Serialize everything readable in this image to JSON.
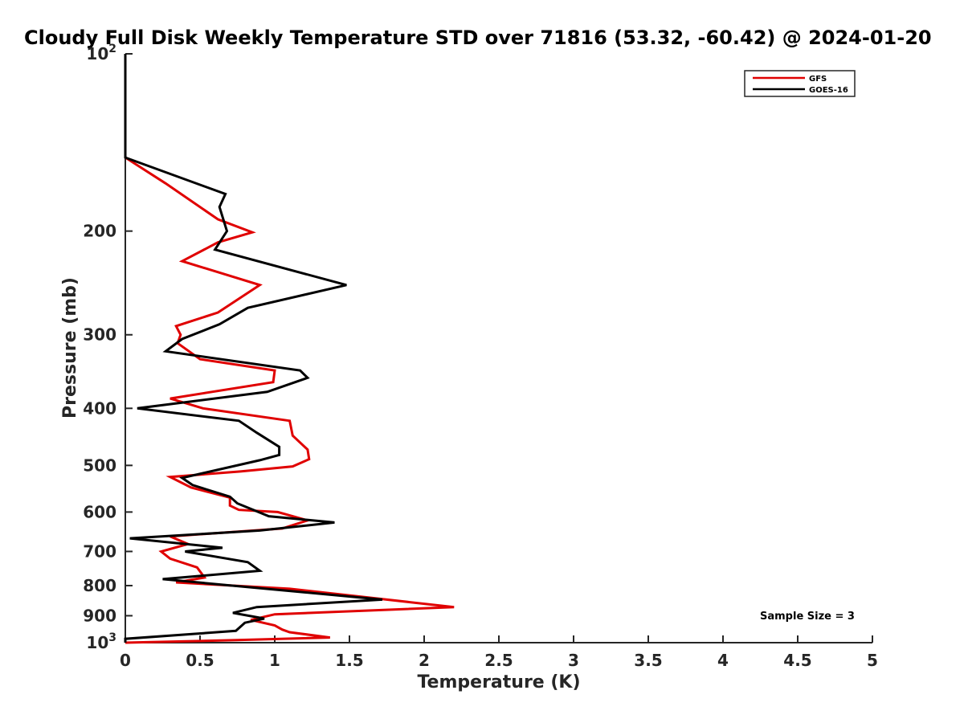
{
  "chart_data": {
    "type": "line",
    "title": "Cloudy Full Disk Weekly Temperature STD over 71816 (53.32, -60.42) @ 2024-01-20",
    "xlabel": "Temperature (K)",
    "ylabel": "Pressure (mb)",
    "xlim": [
      0,
      5
    ],
    "ylim": [
      100,
      1000
    ],
    "y_scale": "log",
    "y_reversed": true,
    "grid": false,
    "legend_position": "top-right",
    "x_ticks": [
      0,
      0.5,
      1,
      1.5,
      2,
      2.5,
      3,
      3.5,
      4,
      4.5,
      5
    ],
    "x_tick_labels": [
      "0",
      "0.5",
      "1",
      "1.5",
      "2",
      "2.5",
      "3",
      "3.5",
      "4",
      "4.5",
      "5"
    ],
    "y_ticks": [
      100,
      200,
      300,
      400,
      500,
      600,
      700,
      800,
      900,
      1000
    ],
    "y_tick_labels": [
      "10^2",
      "200",
      "300",
      "400",
      "500",
      "600",
      "700",
      "800",
      "900",
      "10^3"
    ],
    "series": [
      {
        "name": "GFS",
        "color": "#e00000",
        "points": [
          [
            0,
            100
          ],
          [
            0,
            150
          ],
          [
            0.27,
            166
          ],
          [
            0.62,
            191
          ],
          [
            0.85,
            201
          ],
          [
            0.62,
            209
          ],
          [
            0.38,
            225
          ],
          [
            0.9,
            247
          ],
          [
            0.62,
            275
          ],
          [
            0.34,
            290
          ],
          [
            0.37,
            300
          ],
          [
            0.35,
            310
          ],
          [
            0.5,
            330
          ],
          [
            1.0,
            345
          ],
          [
            0.99,
            361
          ],
          [
            0.3,
            385
          ],
          [
            0.52,
            400
          ],
          [
            1.1,
            420
          ],
          [
            1.12,
            445
          ],
          [
            1.22,
            470
          ],
          [
            1.23,
            488
          ],
          [
            1.12,
            502
          ],
          [
            0.77,
            512
          ],
          [
            0.3,
            523
          ],
          [
            0.44,
            545
          ],
          [
            0.7,
            567
          ],
          [
            0.7,
            585
          ],
          [
            0.76,
            595
          ],
          [
            1.02,
            600
          ],
          [
            1.22,
            620
          ],
          [
            1.05,
            640
          ],
          [
            0.3,
            660
          ],
          [
            0.42,
            680
          ],
          [
            0.24,
            700
          ],
          [
            0.3,
            720
          ],
          [
            0.48,
            745
          ],
          [
            0.53,
            775
          ],
          [
            0.34,
            790
          ],
          [
            1.1,
            810
          ],
          [
            2.2,
            870
          ],
          [
            1.0,
            895
          ],
          [
            0.84,
            915
          ],
          [
            1.0,
            935
          ],
          [
            1.05,
            950
          ],
          [
            1.1,
            960
          ],
          [
            1.37,
            980
          ],
          [
            0.75,
            990
          ],
          [
            0,
            1000
          ]
        ]
      },
      {
        "name": "GOES-16",
        "color": "#000000",
        "points": [
          [
            0,
            100
          ],
          [
            0,
            150
          ],
          [
            0.67,
            173
          ],
          [
            0.63,
            182
          ],
          [
            0.68,
            200
          ],
          [
            0.6,
            215
          ],
          [
            1.48,
            247
          ],
          [
            0.82,
            270
          ],
          [
            0.63,
            288
          ],
          [
            0.38,
            305
          ],
          [
            0.27,
            320
          ],
          [
            1.17,
            345
          ],
          [
            1.22,
            355
          ],
          [
            0.95,
            375
          ],
          [
            0.08,
            400
          ],
          [
            0.76,
            420
          ],
          [
            0.88,
            440
          ],
          [
            1.03,
            465
          ],
          [
            1.03,
            480
          ],
          [
            0.9,
            490
          ],
          [
            0.38,
            525
          ],
          [
            0.45,
            540
          ],
          [
            0.7,
            565
          ],
          [
            0.75,
            580
          ],
          [
            0.96,
            610
          ],
          [
            1.4,
            625
          ],
          [
            0.9,
            645
          ],
          [
            0.03,
            665
          ],
          [
            0.65,
            690
          ],
          [
            0.4,
            700
          ],
          [
            0.82,
            730
          ],
          [
            0.9,
            755
          ],
          [
            0.25,
            780
          ],
          [
            1.72,
            845
          ],
          [
            0.88,
            870
          ],
          [
            0.72,
            890
          ],
          [
            0.93,
            910
          ],
          [
            0.8,
            925
          ],
          [
            0.74,
            955
          ],
          [
            0,
            985
          ],
          [
            0,
            1000
          ]
        ]
      }
    ],
    "annotation": "Sample Size = 3"
  }
}
